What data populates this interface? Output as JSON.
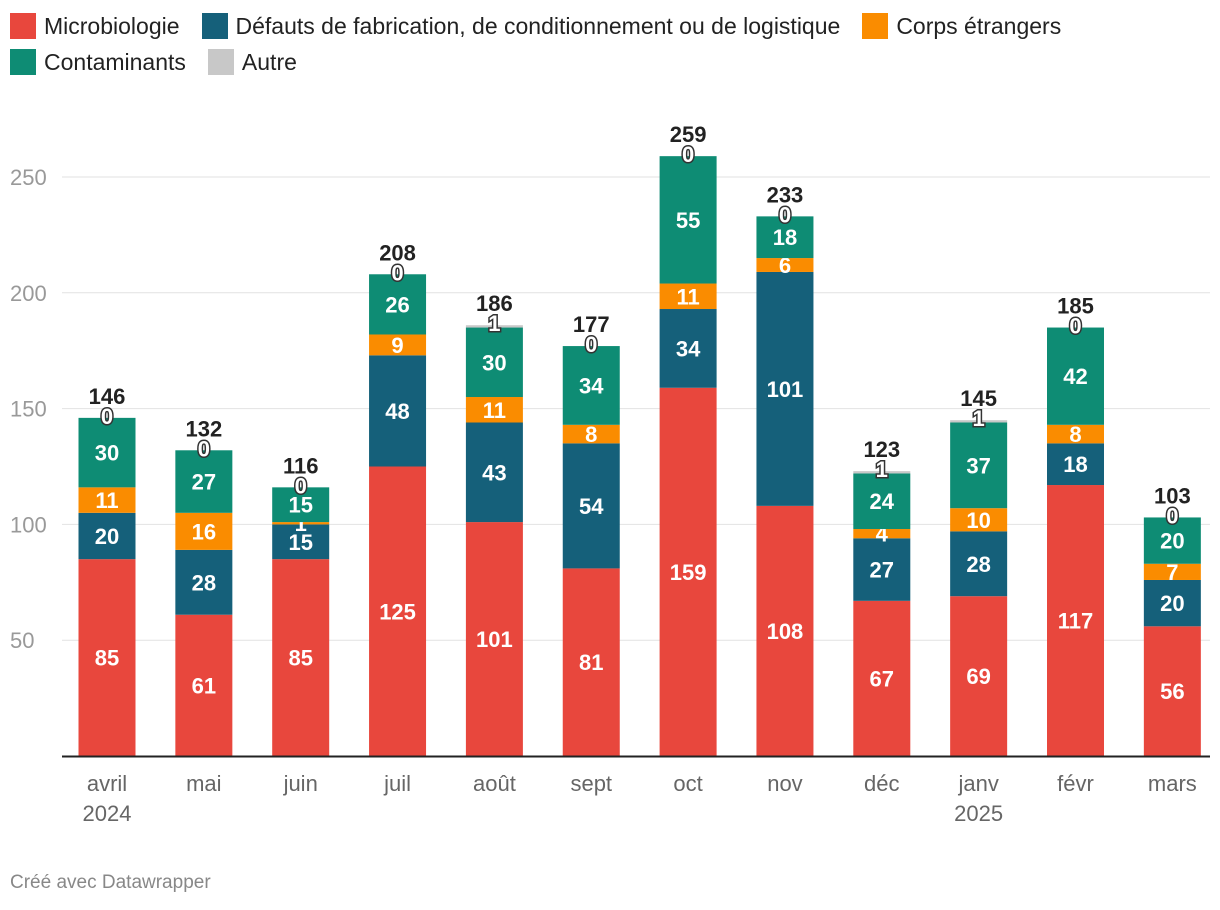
{
  "chart_data": {
    "type": "bar",
    "stacked": true,
    "ylim": [
      0,
      265
    ],
    "yticks": [
      50,
      100,
      150,
      200,
      250
    ],
    "grid": true,
    "legend_position": "top-left",
    "categories": [
      {
        "label": "avril",
        "sub": "2024"
      },
      {
        "label": "mai",
        "sub": ""
      },
      {
        "label": "juin",
        "sub": ""
      },
      {
        "label": "juil",
        "sub": ""
      },
      {
        "label": "août",
        "sub": ""
      },
      {
        "label": "sept",
        "sub": ""
      },
      {
        "label": "oct",
        "sub": ""
      },
      {
        "label": "nov",
        "sub": ""
      },
      {
        "label": "déc",
        "sub": ""
      },
      {
        "label": "janv",
        "sub": "2025"
      },
      {
        "label": "févr",
        "sub": ""
      },
      {
        "label": "mars",
        "sub": ""
      }
    ],
    "series": [
      {
        "name": "Microbiologie",
        "color": "#e8473d",
        "values": [
          85,
          61,
          85,
          125,
          101,
          81,
          159,
          108,
          67,
          69,
          117,
          56
        ]
      },
      {
        "name": "Défauts de fabrication, de conditionnement ou de logistique",
        "color": "#15607a",
        "values": [
          20,
          28,
          15,
          48,
          43,
          54,
          34,
          101,
          27,
          28,
          18,
          20
        ]
      },
      {
        "name": "Corps étrangers",
        "color": "#fa8c00",
        "values": [
          11,
          16,
          1,
          9,
          11,
          8,
          11,
          6,
          4,
          10,
          8,
          7
        ]
      },
      {
        "name": "Contaminants",
        "color": "#0e8c74",
        "values": [
          30,
          27,
          15,
          26,
          30,
          34,
          55,
          18,
          24,
          37,
          42,
          20
        ]
      },
      {
        "name": "Autre",
        "color": "#c8c8c8",
        "values": [
          0,
          0,
          0,
          0,
          1,
          0,
          0,
          0,
          1,
          1,
          0,
          0
        ]
      }
    ],
    "totals": [
      146,
      132,
      116,
      208,
      186,
      177,
      259,
      233,
      123,
      145,
      185,
      103
    ]
  },
  "credit": "Créé avec Datawrapper"
}
